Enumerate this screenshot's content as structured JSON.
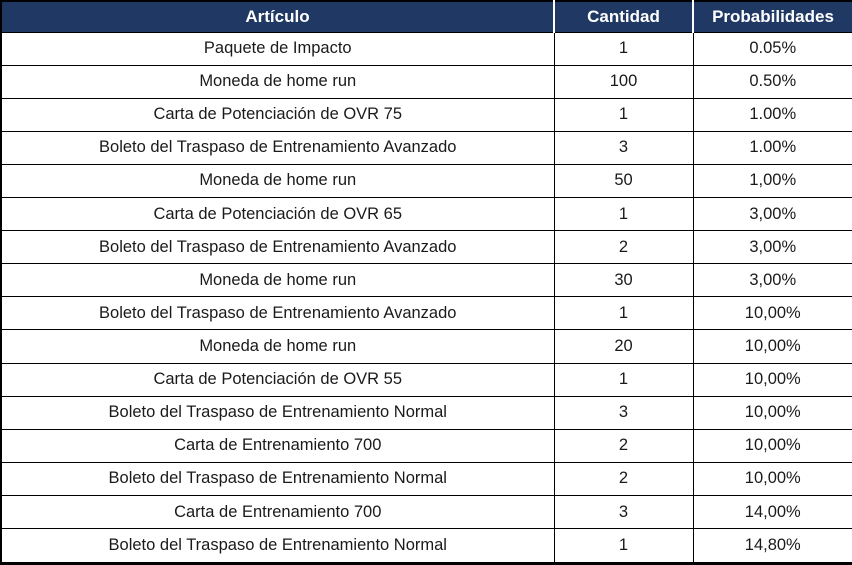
{
  "colors": {
    "header_bg": "#1f3864",
    "header_text": "#ffffff",
    "grid_border": "#000000",
    "row_bg": "#ffffff",
    "body_text": "#1a1a1a"
  },
  "table": {
    "columns": [
      {
        "key": "articulo",
        "label": "Artículo"
      },
      {
        "key": "cantidad",
        "label": "Cantidad"
      },
      {
        "key": "probabilidad",
        "label": "Probabilidades"
      }
    ],
    "rows": [
      {
        "articulo": "Paquete de Impacto",
        "cantidad": "1",
        "probabilidad": "0.05%"
      },
      {
        "articulo": "Moneda de home run",
        "cantidad": "100",
        "probabilidad": "0.50%"
      },
      {
        "articulo": "Carta de Potenciación de OVR 75",
        "cantidad": "1",
        "probabilidad": "1.00%"
      },
      {
        "articulo": "Boleto del Traspaso de Entrenamiento Avanzado",
        "cantidad": "3",
        "probabilidad": "1.00%"
      },
      {
        "articulo": "Moneda de home run",
        "cantidad": "50",
        "probabilidad": "1,00%"
      },
      {
        "articulo": "Carta de Potenciación de OVR 65",
        "cantidad": "1",
        "probabilidad": "3,00%"
      },
      {
        "articulo": "Boleto del Traspaso de Entrenamiento Avanzado",
        "cantidad": "2",
        "probabilidad": "3,00%"
      },
      {
        "articulo": "Moneda de home run",
        "cantidad": "30",
        "probabilidad": "3,00%"
      },
      {
        "articulo": "Boleto del Traspaso de Entrenamiento Avanzado",
        "cantidad": "1",
        "probabilidad": "10,00%"
      },
      {
        "articulo": "Moneda de home run",
        "cantidad": "20",
        "probabilidad": "10,00%"
      },
      {
        "articulo": "Carta de Potenciación de OVR 55",
        "cantidad": "1",
        "probabilidad": "10,00%"
      },
      {
        "articulo": "Boleto del Traspaso de Entrenamiento Normal",
        "cantidad": "3",
        "probabilidad": "10,00%"
      },
      {
        "articulo": "Carta de Entrenamiento 700",
        "cantidad": "2",
        "probabilidad": "10,00%"
      },
      {
        "articulo": "Boleto del Traspaso de Entrenamiento Normal",
        "cantidad": "2",
        "probabilidad": "10,00%"
      },
      {
        "articulo": "Carta de Entrenamiento 700",
        "cantidad": "3",
        "probabilidad": "14,00%"
      },
      {
        "articulo": "Boleto del Traspaso de Entrenamiento Normal",
        "cantidad": "1",
        "probabilidad": "14,80%"
      }
    ]
  }
}
